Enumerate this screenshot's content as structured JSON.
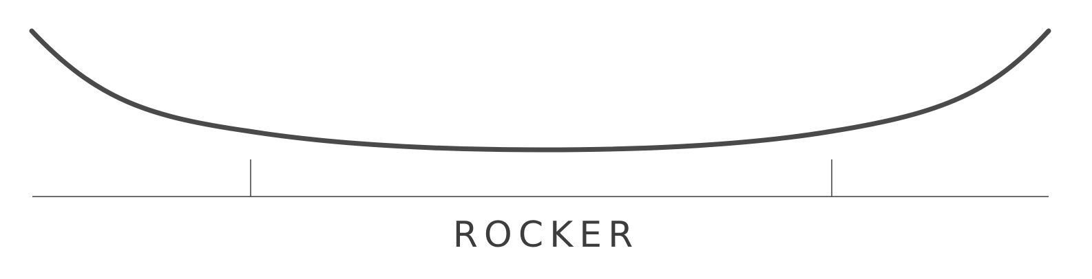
{
  "profile": {
    "label": "ROCKER"
  },
  "colors": {
    "curve": "#4a4a4a",
    "baseline": "#3a3a3a",
    "label": "#3d3d3d"
  }
}
